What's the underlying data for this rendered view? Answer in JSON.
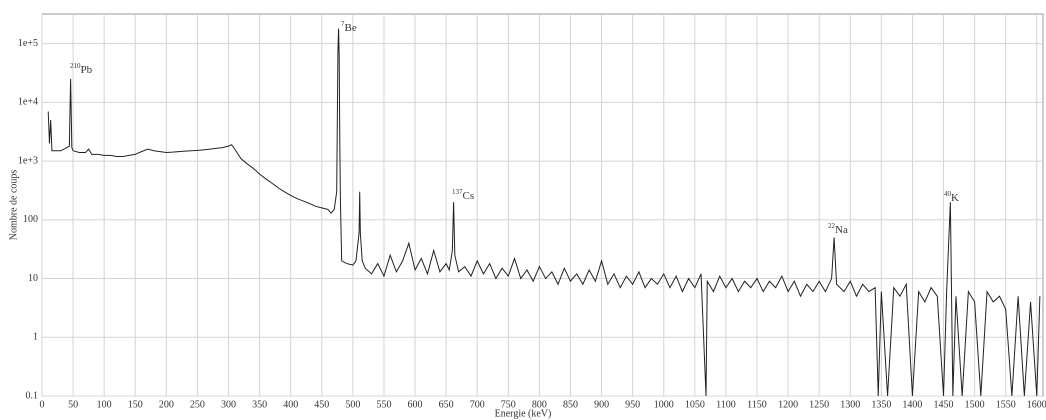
{
  "chart_data": {
    "type": "line",
    "xlabel": "Energie (keV)",
    "ylabel": "Nombre de coups",
    "log_y": true,
    "grid": true,
    "color": "#222222",
    "xlim": [
      0,
      1610
    ],
    "ylim": [
      0.1,
      320000
    ],
    "xticks": [
      0,
      50,
      100,
      150,
      200,
      250,
      300,
      350,
      400,
      450,
      500,
      550,
      600,
      650,
      700,
      750,
      800,
      850,
      900,
      950,
      1000,
      1050,
      1100,
      1150,
      1200,
      1250,
      1300,
      1350,
      1400,
      1450,
      1500,
      1550,
      1600
    ],
    "yticks": [
      0.1,
      1,
      10,
      100,
      {
        "value": 1000,
        "label": "1e+3"
      },
      {
        "value": 10000,
        "label": "1e+4"
      },
      {
        "value": 100000,
        "label": "1e+5"
      }
    ],
    "annotations": [
      {
        "isotope": "210",
        "label": "Pb"
      },
      {
        "isotope": "7",
        "label": "Be"
      },
      {
        "isotope": "137",
        "label": "Cs"
      },
      {
        "isotope": "22",
        "label": "Na"
      },
      {
        "isotope": "40",
        "label": "K"
      }
    ],
    "x": [
      10,
      12,
      14,
      16,
      20,
      30,
      40,
      44,
      46,
      48,
      50,
      60,
      70,
      75,
      80,
      90,
      100,
      110,
      120,
      130,
      140,
      150,
      160,
      170,
      180,
      190,
      200,
      210,
      220,
      230,
      240,
      250,
      260,
      270,
      280,
      290,
      300,
      305,
      310,
      320,
      330,
      340,
      350,
      360,
      370,
      380,
      390,
      400,
      410,
      420,
      430,
      440,
      450,
      460,
      465,
      470,
      474,
      476,
      477,
      478,
      479,
      480,
      482,
      490,
      500,
      505,
      510,
      511,
      512,
      515,
      520,
      530,
      540,
      550,
      560,
      570,
      580,
      590,
      600,
      610,
      620,
      630,
      640,
      650,
      655,
      660,
      662,
      664,
      670,
      680,
      690,
      700,
      710,
      720,
      730,
      740,
      750,
      760,
      770,
      780,
      790,
      800,
      810,
      820,
      830,
      840,
      850,
      860,
      870,
      880,
      890,
      900,
      910,
      920,
      930,
      940,
      950,
      960,
      970,
      980,
      990,
      1000,
      1010,
      1020,
      1030,
      1040,
      1050,
      1060,
      1068,
      1070,
      1080,
      1090,
      1100,
      1110,
      1120,
      1130,
      1140,
      1150,
      1160,
      1170,
      1180,
      1190,
      1200,
      1210,
      1220,
      1230,
      1240,
      1250,
      1260,
      1270,
      1274,
      1278,
      1290,
      1300,
      1310,
      1320,
      1330,
      1340,
      1345,
      1350,
      1360,
      1370,
      1380,
      1390,
      1400,
      1410,
      1420,
      1430,
      1440,
      1450,
      1455,
      1461,
      1465,
      1470,
      1480,
      1490,
      1500,
      1510,
      1520,
      1530,
      1540,
      1550,
      1560,
      1570,
      1580,
      1590,
      1600,
      1605
    ],
    "values": [
      7000,
      2000,
      5000,
      1500,
      1500,
      1500,
      1700,
      1800,
      25000,
      1700,
      1500,
      1400,
      1400,
      1600,
      1300,
      1300,
      1250,
      1250,
      1200,
      1200,
      1250,
      1300,
      1450,
      1600,
      1500,
      1450,
      1400,
      1420,
      1450,
      1480,
      1500,
      1520,
      1550,
      1600,
      1650,
      1700,
      1800,
      1900,
      1600,
      1100,
      900,
      750,
      600,
      500,
      420,
      350,
      300,
      260,
      230,
      210,
      190,
      170,
      160,
      150,
      130,
      150,
      300,
      80000,
      180000,
      60000,
      2000,
      200,
      20,
      18,
      17,
      20,
      60,
      300,
      60,
      20,
      15,
      12,
      18,
      11,
      25,
      13,
      20,
      40,
      14,
      22,
      12,
      30,
      13,
      18,
      14,
      30,
      200,
      25,
      13,
      16,
      11,
      20,
      12,
      18,
      10,
      15,
      11,
      22,
      10,
      14,
      9,
      16,
      10,
      13,
      8,
      15,
      9,
      12,
      8,
      14,
      9,
      20,
      8,
      12,
      7,
      11,
      8,
      13,
      7,
      10,
      8,
      12,
      7,
      11,
      6,
      10,
      7,
      12,
      0.1,
      9,
      6,
      11,
      7,
      10,
      6,
      9,
      7,
      10,
      6,
      9,
      7,
      11,
      6,
      9,
      5,
      8,
      6,
      9,
      6,
      10,
      50,
      8,
      6,
      9,
      5,
      8,
      6,
      7,
      0.1,
      6,
      0.1,
      7,
      5,
      8,
      0.1,
      6,
      4,
      7,
      5,
      0.1,
      6,
      200,
      0.1,
      5,
      0.1,
      6,
      4,
      0.1,
      6,
      4,
      5,
      3,
      0.1,
      5,
      0.1,
      4,
      0.1,
      5
    ]
  }
}
